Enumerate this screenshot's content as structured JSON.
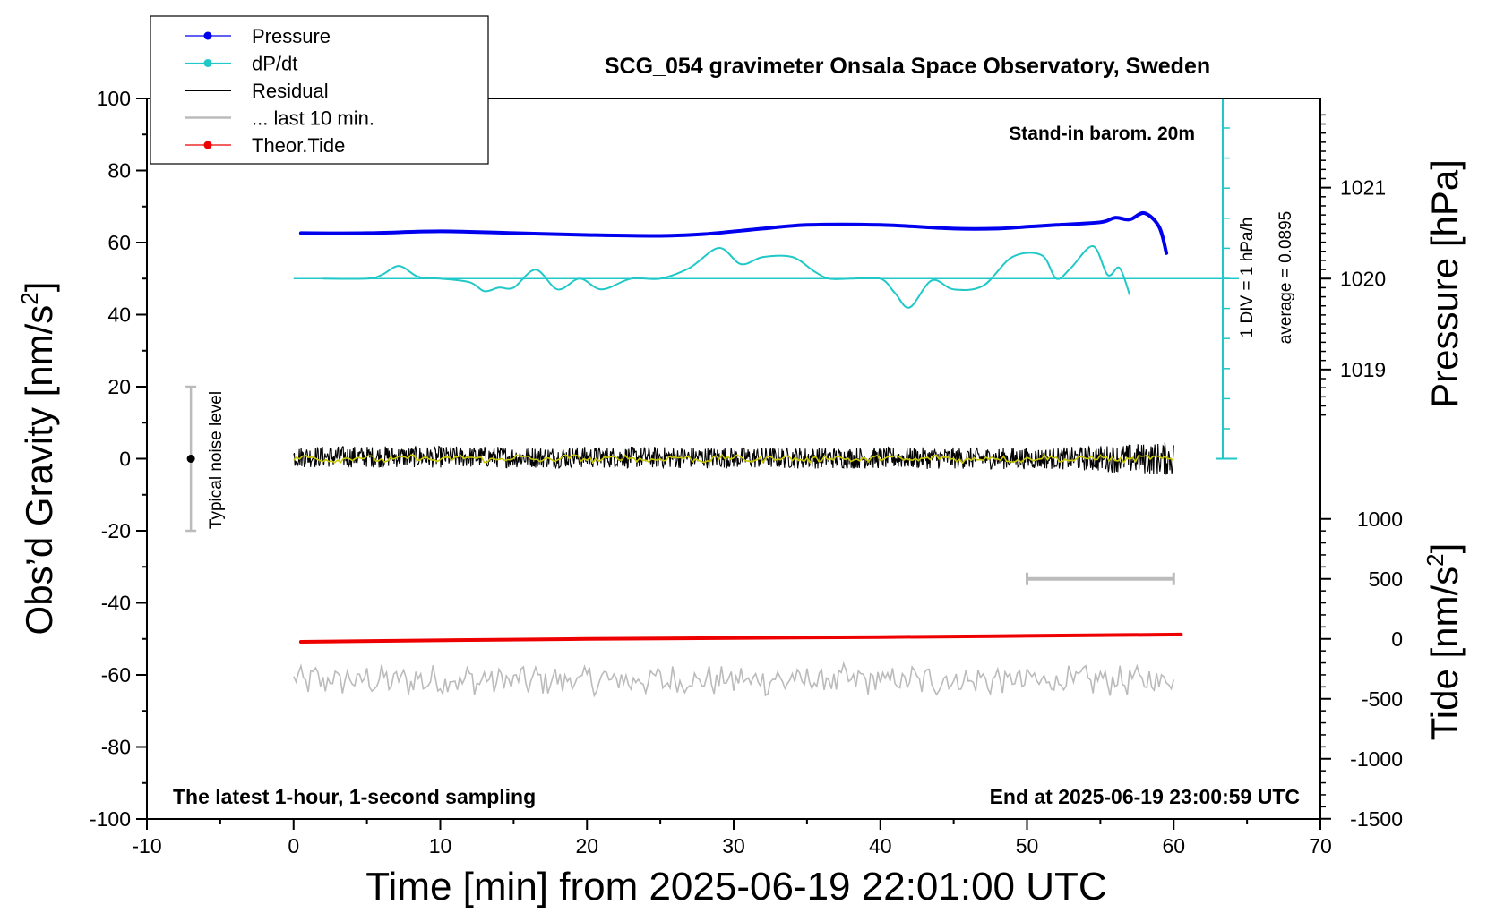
{
  "chart_data": {
    "type": "line",
    "title": "SCG_054 gravimeter Onsala Space Observatory, Sweden",
    "xlabel": "Time [min] from 2025-06-19 22:01:00 UTC",
    "ylabel": "Obs’d Gravity [nm/s",
    "ylabel_sup": "2",
    "ylabel_end": "]",
    "xlim": [
      -10,
      70
    ],
    "ylim": [
      -100,
      100
    ],
    "xticks": [
      "-10",
      "0",
      "10",
      "20",
      "30",
      "40",
      "50",
      "60",
      "70"
    ],
    "yticks": [
      "100",
      "80",
      "60",
      "40",
      "20",
      "0",
      "-20",
      "-40",
      "-60",
      "-80",
      "-100"
    ],
    "pressure_axis": {
      "label": "Pressure [hPa]",
      "ticks": [
        "1021",
        "1020",
        "1019"
      ],
      "tick_values": [
        1021,
        1020,
        1019
      ],
      "range": [
        1018,
        1022
      ]
    },
    "tide_axis": {
      "label": "Tide [nm/s",
      "label_sup": "2",
      "label_end": "]",
      "ticks": [
        "1000",
        "500",
        "0",
        "-500",
        "-1000",
        "-1500"
      ],
      "tick_values": [
        1000,
        500,
        0,
        -500,
        -1000,
        -1500
      ],
      "range": [
        -1500,
        1000
      ]
    },
    "dpdt_axis": {
      "label1": "1 DIV = 1 hPa/h",
      "label2": "average = 0.0895",
      "average": 0.0895
    },
    "legend": [
      {
        "name": "Pressure",
        "color": "#0000ee",
        "marker": true
      },
      {
        "name": "dP/dt",
        "color": "#20c8c8",
        "marker": true
      },
      {
        "name": "Residual",
        "color": "#000000",
        "marker": false
      },
      {
        "name": "... last 10 min.",
        "color": "#bbbbbb",
        "marker": false
      },
      {
        "name": "Theor.Tide",
        "color": "#ee0000",
        "marker": true
      }
    ],
    "legend_placement": "top-left",
    "annotations": {
      "barometer": "Stand-in barom. 20m",
      "sampling": "The latest 1-hour, 1-second sampling",
      "end_time": "End at 2025-06-19 23:00:59 UTC",
      "noise": "Typical noise level"
    },
    "noise_bar": {
      "x": -7,
      "center": 0,
      "low": -20,
      "high": 20
    },
    "last10_bar": {
      "x_start": 50,
      "x_end": 60,
      "tide_value": 500
    },
    "series": [
      {
        "name": "Pressure",
        "unit": "hPa",
        "color": "#0000ee",
        "x": [
          0.5,
          5,
          10,
          15,
          20,
          25,
          28,
          32,
          35,
          40,
          45,
          48,
          50,
          52,
          55,
          56,
          57,
          58,
          59,
          59.5
        ],
        "y": [
          1020.5,
          1020.5,
          1020.52,
          1020.5,
          1020.48,
          1020.47,
          1020.49,
          1020.55,
          1020.59,
          1020.59,
          1020.55,
          1020.55,
          1020.57,
          1020.59,
          1020.62,
          1020.67,
          1020.65,
          1020.72,
          1020.57,
          1020.28
        ]
      },
      {
        "name": "dP/dt",
        "unit": "nm/s2 (scaled)",
        "color": "#20c8c8",
        "x": [
          2,
          5,
          6,
          7.2,
          8.5,
          10,
          12,
          13,
          14,
          15,
          16.5,
          18,
          19.5,
          21,
          23,
          25,
          27,
          29,
          30.5,
          32,
          34,
          35.5,
          36.5,
          38,
          40,
          41,
          42,
          43.5,
          45,
          47,
          49,
          51,
          52,
          53,
          54.5,
          55.5,
          56.3,
          57
        ],
        "y": [
          50,
          50,
          51,
          53.5,
          50.5,
          50,
          49,
          46.5,
          47.5,
          47.5,
          52.5,
          47,
          50,
          47,
          50,
          50,
          53,
          58.5,
          54,
          56,
          56,
          52,
          50,
          50,
          50,
          46,
          42,
          49.5,
          47,
          48,
          56,
          56.5,
          50,
          53,
          59,
          51,
          53,
          45.5
        ]
      },
      {
        "name": "Residual",
        "unit": "nm/s2",
        "color": "#000000",
        "x_start": 0,
        "x_end": 60,
        "level": 0,
        "amplitude": 3
      },
      {
        "name": "... last 10 min.",
        "unit": "nm/s2",
        "color": "#bbbbbb",
        "x_start": 0,
        "x_end": 60,
        "level": -61.5,
        "amplitude": 3.5
      },
      {
        "name": "Theor.Tide",
        "unit": "nm/s2",
        "color": "#ee0000",
        "x": [
          0.5,
          20,
          40,
          60.5
        ],
        "y": [
          -50.8,
          -50,
          -49.5,
          -48.8
        ]
      }
    ],
    "colors": {
      "pressure": "#0000ee",
      "dpdt": "#20c8c8",
      "residual": "#000000",
      "residual_smooth": "#c8c800",
      "last10": "#bbbbbb",
      "tide": "#ee0000"
    }
  }
}
